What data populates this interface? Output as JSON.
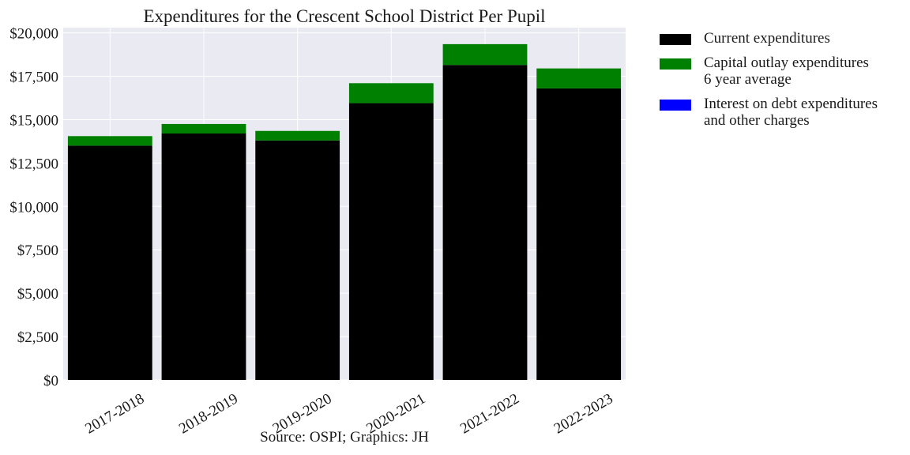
{
  "chart_data": {
    "type": "bar",
    "stacked": true,
    "title": "Expenditures for the Crescent School District Per Pupil",
    "categories": [
      "2017-2018",
      "2018-2019",
      "2019-2020",
      "2020-2021",
      "2021-2022",
      "2022-2023"
    ],
    "series": [
      {
        "name": "Current expenditures",
        "color": "#000000",
        "values": [
          13500,
          14200,
          13800,
          15950,
          18150,
          16800
        ]
      },
      {
        "name": "Capital outlay expenditures\n6 year average",
        "color": "#008000",
        "values": [
          550,
          550,
          550,
          1150,
          1200,
          1150
        ]
      },
      {
        "name": "Interest on debt expenditures\nand other charges",
        "color": "#0000ff",
        "values": [
          0,
          0,
          0,
          0,
          0,
          0
        ]
      }
    ],
    "ylim": [
      0,
      20300
    ],
    "yticks": [
      0,
      2500,
      5000,
      7500,
      10000,
      12500,
      15000,
      17500,
      20000
    ],
    "ytick_labels": [
      "$0",
      "$2,500",
      "$5,000",
      "$7,500",
      "$10,000",
      "$12,500",
      "$15,000",
      "$17,500",
      "$20,000"
    ],
    "xlabel": "",
    "ylabel": "",
    "grid": true,
    "legend_position": "outside right"
  },
  "source_note": "Source: OSPI; Graphics: JH"
}
